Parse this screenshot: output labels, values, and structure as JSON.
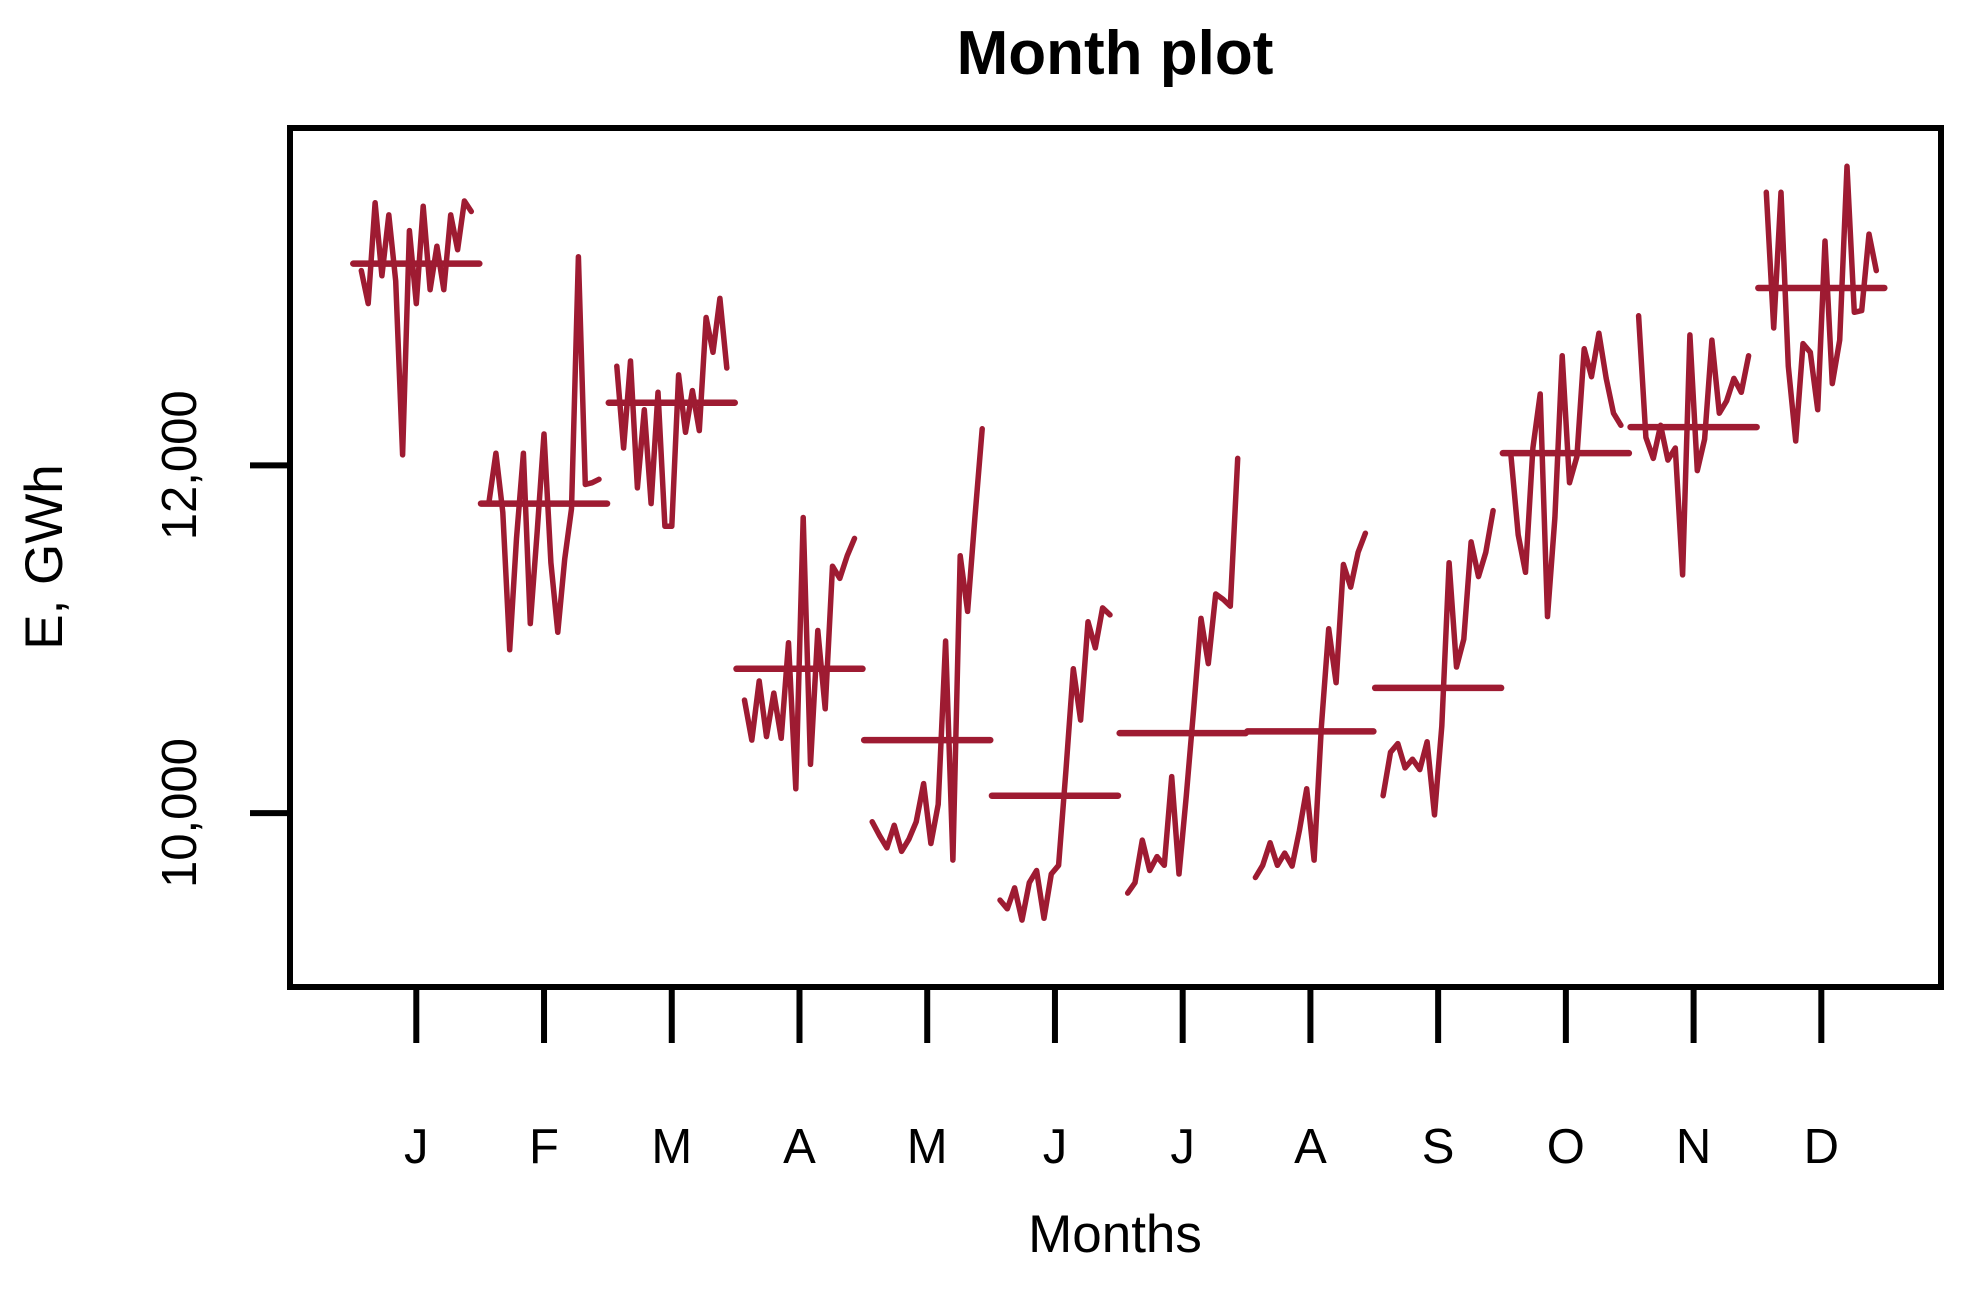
{
  "chart_data": {
    "type": "line",
    "variant": "seasonal-subseries-month-plot",
    "title": "Month plot",
    "xlabel": "Months",
    "ylabel": "E, GWh",
    "ylim": [
      9000,
      13940
    ],
    "grid": "off",
    "legend": "none",
    "line_color": "#9e1b32",
    "axis_color": "#000000",
    "yticks": [
      {
        "value": 10000,
        "label": "10,000"
      },
      {
        "value": 12000,
        "label": "12,000"
      }
    ],
    "months": [
      {
        "label": "J",
        "mean": 13160,
        "values": [
          13120,
          12930,
          13510,
          13090,
          13440,
          13060,
          12060,
          13350,
          12930,
          13490,
          13010,
          13260,
          13010,
          13440,
          13240,
          13520,
          13460
        ]
      },
      {
        "label": "F",
        "mean": 11780,
        "values": [
          11790,
          12070,
          11730,
          10940,
          11580,
          12070,
          11090,
          11620,
          12180,
          11440,
          11040,
          11460,
          11750,
          13200,
          11890,
          11900,
          11920
        ]
      },
      {
        "label": "M",
        "mean": 12360,
        "values": [
          12570,
          12100,
          12600,
          11870,
          12320,
          11780,
          12420,
          11650,
          11650,
          12520,
          12190,
          12430,
          12200,
          12850,
          12650,
          12960,
          12560
        ]
      },
      {
        "label": "A",
        "mean": 10830,
        "values": [
          10650,
          10420,
          10760,
          10440,
          10690,
          10430,
          10980,
          10140,
          11700,
          10280,
          11050,
          10600,
          11420,
          11350,
          11480,
          11580
        ]
      },
      {
        "label": "M",
        "mean": 10420,
        "values": [
          9950,
          9870,
          9800,
          9930,
          9780,
          9850,
          9950,
          10170,
          9825,
          10050,
          10990,
          9730,
          11480,
          11160,
          11700,
          12210
        ]
      },
      {
        "label": "J",
        "mean": 10100,
        "values": [
          9500,
          9450,
          9570,
          9385,
          9600,
          9670,
          9395,
          9650,
          9700,
          10250,
          10830,
          10535,
          11100,
          10950,
          11180,
          11140
        ]
      },
      {
        "label": "J",
        "mean": 10460,
        "values": [
          9540,
          9600,
          9845,
          9670,
          9750,
          9700,
          10210,
          9650,
          10100,
          10600,
          11120,
          10860,
          11260,
          11230,
          11190,
          12040
        ]
      },
      {
        "label": "A",
        "mean": 10470,
        "values": [
          9630,
          9700,
          9830,
          9700,
          9770,
          9695,
          9900,
          10140,
          9730,
          10500,
          11060,
          10750,
          11430,
          11300,
          11500,
          11610
        ]
      },
      {
        "label": "S",
        "mean": 10720,
        "values": [
          10100,
          10350,
          10400,
          10260,
          10310,
          10250,
          10410,
          9990,
          10500,
          11440,
          10840,
          11000,
          11560,
          11360,
          11500,
          11740
        ]
      },
      {
        "label": "O",
        "mean": 12070,
        "values": [
          12060,
          11600,
          11385,
          12100,
          12410,
          11130,
          11700,
          12630,
          11900,
          12050,
          12670,
          12510,
          12760,
          12500,
          12300,
          12230
        ]
      },
      {
        "label": "N",
        "mean": 12220,
        "values": [
          12860,
          12160,
          12040,
          12230,
          12030,
          12100,
          11370,
          12750,
          11970,
          12150,
          12720,
          12300,
          12370,
          12500,
          12420,
          12630
        ]
      },
      {
        "label": "D",
        "mean": 13020,
        "values": [
          13570,
          12790,
          13570,
          12570,
          12140,
          12700,
          12650,
          12320,
          13290,
          12470,
          12720,
          13720,
          12880,
          12890,
          13330,
          13120
        ]
      }
    ]
  }
}
